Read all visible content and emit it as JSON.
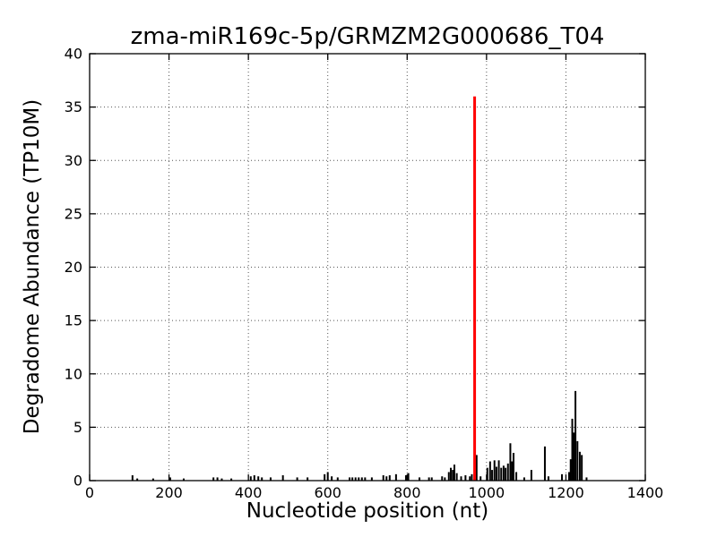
{
  "chart_data": {
    "type": "bar",
    "subtype": "impulse-stem-plot",
    "title": "zma-miR169c-5p/GRMZM2G000686_T04",
    "xlabel": "Nucleotide position (nt)",
    "ylabel": "Degradome Abundance (TP10M)",
    "xlim": [
      0,
      1400
    ],
    "ylim": [
      0,
      40
    ],
    "x_ticks": [
      0,
      200,
      400,
      600,
      800,
      1000,
      1200,
      1400
    ],
    "y_ticks": [
      0,
      5,
      10,
      15,
      20,
      25,
      30,
      35,
      40
    ],
    "grid": "dotted",
    "legend": "none",
    "colors": {
      "background": "#ffffff",
      "axis": "#000000",
      "grid": "#555555",
      "degradome_spikes": "#000000",
      "cleavage_site": "#ff0000"
    },
    "series": [
      {
        "name": "degradome-abundance",
        "color": "#000000",
        "points": [
          [
            108,
            0.5
          ],
          [
            120,
            0.2
          ],
          [
            160,
            0.2
          ],
          [
            203,
            0.3
          ],
          [
            237,
            0.2
          ],
          [
            312,
            0.3
          ],
          [
            322,
            0.3
          ],
          [
            333,
            0.2
          ],
          [
            357,
            0.2
          ],
          [
            406,
            0.4
          ],
          [
            415,
            0.5
          ],
          [
            425,
            0.4
          ],
          [
            434,
            0.3
          ],
          [
            456,
            0.3
          ],
          [
            487,
            0.5
          ],
          [
            523,
            0.3
          ],
          [
            549,
            0.3
          ],
          [
            592,
            0.6
          ],
          [
            600,
            0.8
          ],
          [
            610,
            0.4
          ],
          [
            625,
            0.3
          ],
          [
            655,
            0.3
          ],
          [
            662,
            0.3
          ],
          [
            670,
            0.3
          ],
          [
            678,
            0.3
          ],
          [
            686,
            0.3
          ],
          [
            694,
            0.3
          ],
          [
            711,
            0.3
          ],
          [
            740,
            0.5
          ],
          [
            748,
            0.4
          ],
          [
            756,
            0.5
          ],
          [
            772,
            0.6
          ],
          [
            797,
            0.5
          ],
          [
            803,
            0.7
          ],
          [
            831,
            0.3
          ],
          [
            855,
            0.3
          ],
          [
            862,
            0.3
          ],
          [
            888,
            0.4
          ],
          [
            895,
            0.3
          ],
          [
            905,
            0.8
          ],
          [
            910,
            1.2
          ],
          [
            915,
            1.0
          ],
          [
            919,
            1.5
          ],
          [
            925,
            0.7
          ],
          [
            936,
            0.4
          ],
          [
            947,
            0.5
          ],
          [
            958,
            0.4
          ],
          [
            963,
            0.6
          ],
          [
            975,
            2.4
          ],
          [
            985,
            0.4
          ],
          [
            1002,
            1.2
          ],
          [
            1009,
            1.8
          ],
          [
            1014,
            1.0
          ],
          [
            1020,
            1.9
          ],
          [
            1025,
            1.3
          ],
          [
            1031,
            1.9
          ],
          [
            1037,
            1.2
          ],
          [
            1043,
            1.4
          ],
          [
            1048,
            1.2
          ],
          [
            1054,
            1.6
          ],
          [
            1060,
            3.5
          ],
          [
            1064,
            1.8
          ],
          [
            1068,
            2.6
          ],
          [
            1075,
            0.8
          ],
          [
            1095,
            0.3
          ],
          [
            1113,
            1.0
          ],
          [
            1147,
            3.2
          ],
          [
            1156,
            0.4
          ],
          [
            1190,
            0.6
          ],
          [
            1208,
            0.8
          ],
          [
            1212,
            2.0
          ],
          [
            1216,
            5.8
          ],
          [
            1220,
            4.5
          ],
          [
            1224,
            8.4
          ],
          [
            1229,
            3.7
          ],
          [
            1235,
            2.7
          ],
          [
            1240,
            2.4
          ],
          [
            1252,
            0.3
          ]
        ]
      },
      {
        "name": "mirna-cleavage-site",
        "color": "#ff0000",
        "points": [
          [
            970,
            36
          ]
        ]
      }
    ]
  }
}
